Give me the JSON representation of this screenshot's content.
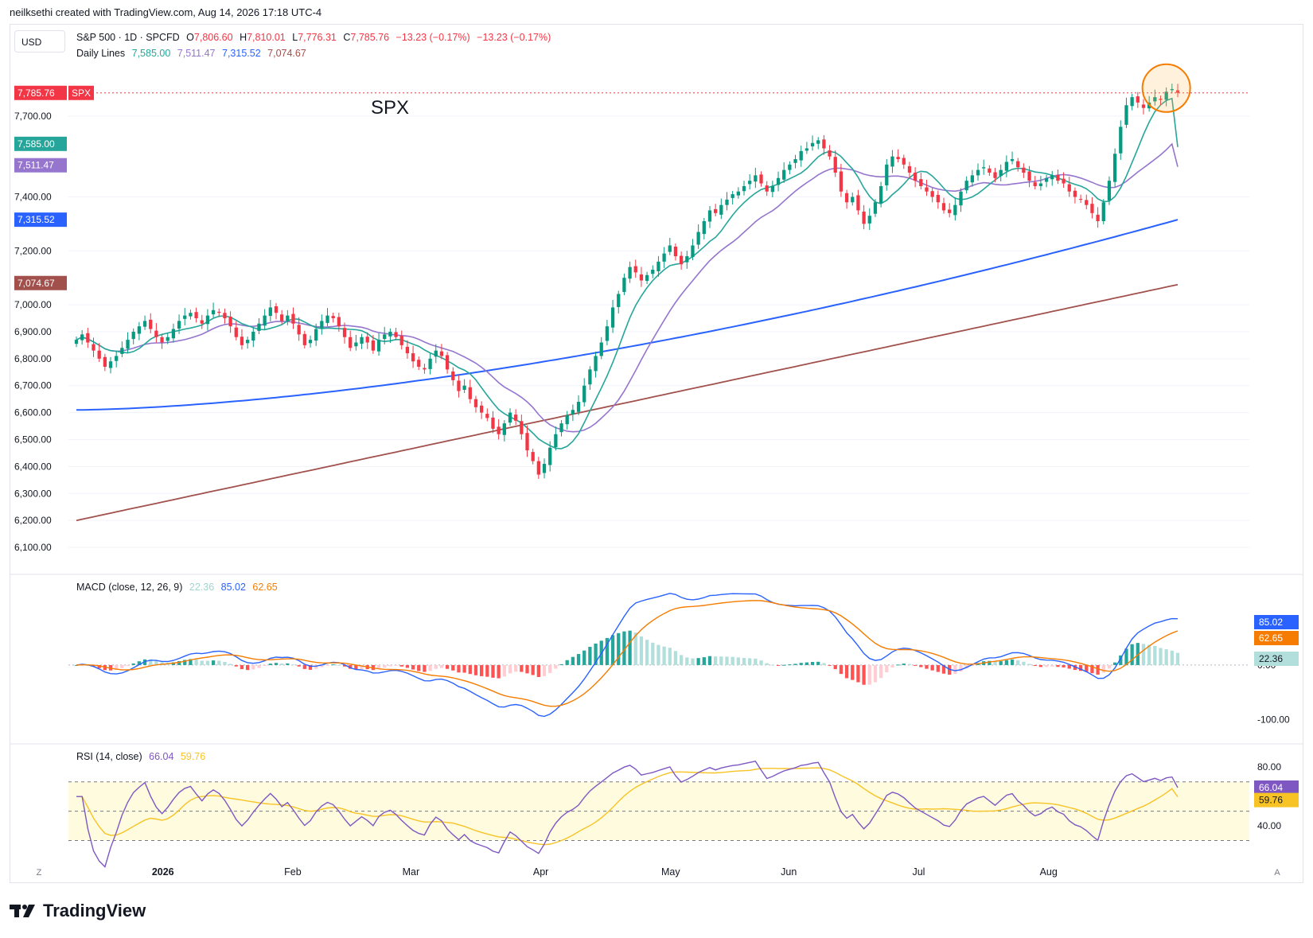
{
  "header": {
    "credit": "neilksethi created with TradingView.com, Aug 14, 2026 17:18 UTC-4"
  },
  "currency": "USD",
  "symbol_label": "SPX",
  "legend": {
    "title": "S&P 500 · 1D · SPCFD",
    "o_label": "O",
    "o": "7,806.60",
    "h_label": "H",
    "h": "7,810.01",
    "l_label": "L",
    "l": "7,776.31",
    "c_label": "C",
    "c": "7,785.76",
    "change": "−13.23 (−0.17%)",
    "change2": "−13.23 (−0.17%)",
    "lines_title": "Daily Lines",
    "ma1": "7,585.00",
    "ma2": "7,511.47",
    "ma3": "7,315.52",
    "ma4": "7,074.67"
  },
  "macd_legend": {
    "title": "MACD (close, 12, 26, 9)",
    "hist": "22.36",
    "macd": "85.02",
    "signal": "62.65"
  },
  "rsi_legend": {
    "title": "RSI (14, close)",
    "rsi": "66.04",
    "ma": "59.76"
  },
  "corner_left": "Z",
  "corner_right": "A",
  "brand": "TradingView",
  "colors": {
    "up": "#089981",
    "down": "#f23645",
    "ma1": "#26a69a",
    "ma2": "#9575cd",
    "ma3": "#2962ff",
    "ma4": "#a1504c",
    "macd": "#2962ff",
    "signal": "#f57c00",
    "rsi": "#7e57c2",
    "rsi_ma": "#f7c325"
  },
  "chart_data": {
    "type": "candlestick",
    "x_ticks": [
      "2026",
      "Feb",
      "Mar",
      "Apr",
      "May",
      "Jun",
      "Jul",
      "Aug"
    ],
    "price_axis": {
      "ylim": [
        6050,
        7850
      ],
      "ticks": [
        "6,100.00",
        "6,200.00",
        "6,300.00",
        "6,400.00",
        "6,500.00",
        "6,600.00",
        "6,700.00",
        "6,800.00",
        "6,900.00",
        "7,000.00",
        "7,200.00",
        "7,400.00",
        "7,700.00"
      ]
    },
    "last_price": "7,785.76",
    "ma_labels": [
      "7,585.00",
      "7,511.47",
      "7,315.52",
      "7,074.67"
    ],
    "closes": [
      6870,
      6890,
      6860,
      6830,
      6800,
      6770,
      6790,
      6810,
      6840,
      6870,
      6900,
      6920,
      6940,
      6910,
      6880,
      6860,
      6880,
      6910,
      6940,
      6960,
      6970,
      6950,
      6930,
      6960,
      6980,
      6970,
      6950,
      6920,
      6880,
      6850,
      6870,
      6900,
      6930,
      6960,
      6990,
      6970,
      6940,
      6960,
      6930,
      6890,
      6850,
      6870,
      6910,
      6940,
      6960,
      6950,
      6920,
      6880,
      6840,
      6860,
      6880,
      6860,
      6830,
      6870,
      6890,
      6900,
      6880,
      6850,
      6820,
      6790,
      6770,
      6760,
      6800,
      6830,
      6810,
      6760,
      6720,
      6680,
      6700,
      6650,
      6620,
      6600,
      6580,
      6540,
      6520,
      6560,
      6600,
      6570,
      6520,
      6460,
      6420,
      6370,
      6410,
      6470,
      6520,
      6560,
      6590,
      6610,
      6640,
      6700,
      6760,
      6810,
      6860,
      6920,
      6990,
      7040,
      7100,
      7140,
      7120,
      7090,
      7110,
      7130,
      7160,
      7190,
      7220,
      7180,
      7150,
      7180,
      7220,
      7270,
      7310,
      7350,
      7340,
      7370,
      7390,
      7410,
      7420,
      7440,
      7460,
      7480,
      7450,
      7420,
      7440,
      7470,
      7500,
      7520,
      7540,
      7570,
      7580,
      7600,
      7610,
      7580,
      7550,
      7490,
      7420,
      7380,
      7400,
      7350,
      7300,
      7330,
      7380,
      7440,
      7520,
      7550,
      7540,
      7520,
      7490,
      7460,
      7440,
      7420,
      7400,
      7380,
      7350,
      7340,
      7370,
      7420,
      7460,
      7480,
      7500,
      7510,
      7490,
      7470,
      7500,
      7530,
      7540,
      7510,
      7490,
      7460,
      7440,
      7450,
      7470,
      7480,
      7460,
      7450,
      7420,
      7400,
      7390,
      7370,
      7340,
      7310,
      7380,
      7460,
      7560,
      7660,
      7740,
      7770,
      7750,
      7730,
      7750,
      7770,
      7760,
      7790,
      7800,
      7786
    ],
    "ma1_label": "7,585.00",
    "ma2_label": "7,511.47",
    "ma3_label": "7,315.52",
    "ma4_label": "7,074.67",
    "macd": {
      "ylim": [
        -130,
        140
      ],
      "ticks": [
        "-100.00",
        "0.00"
      ],
      "last_macd": "85.02",
      "last_signal": "62.65",
      "last_hist": "22.36"
    },
    "rsi": {
      "ylim": [
        20,
        85
      ],
      "ticks": [
        "40.00",
        "80.00"
      ],
      "levels": [
        70,
        50,
        30
      ],
      "last_rsi": "66.04",
      "last_ma": "59.76"
    }
  }
}
